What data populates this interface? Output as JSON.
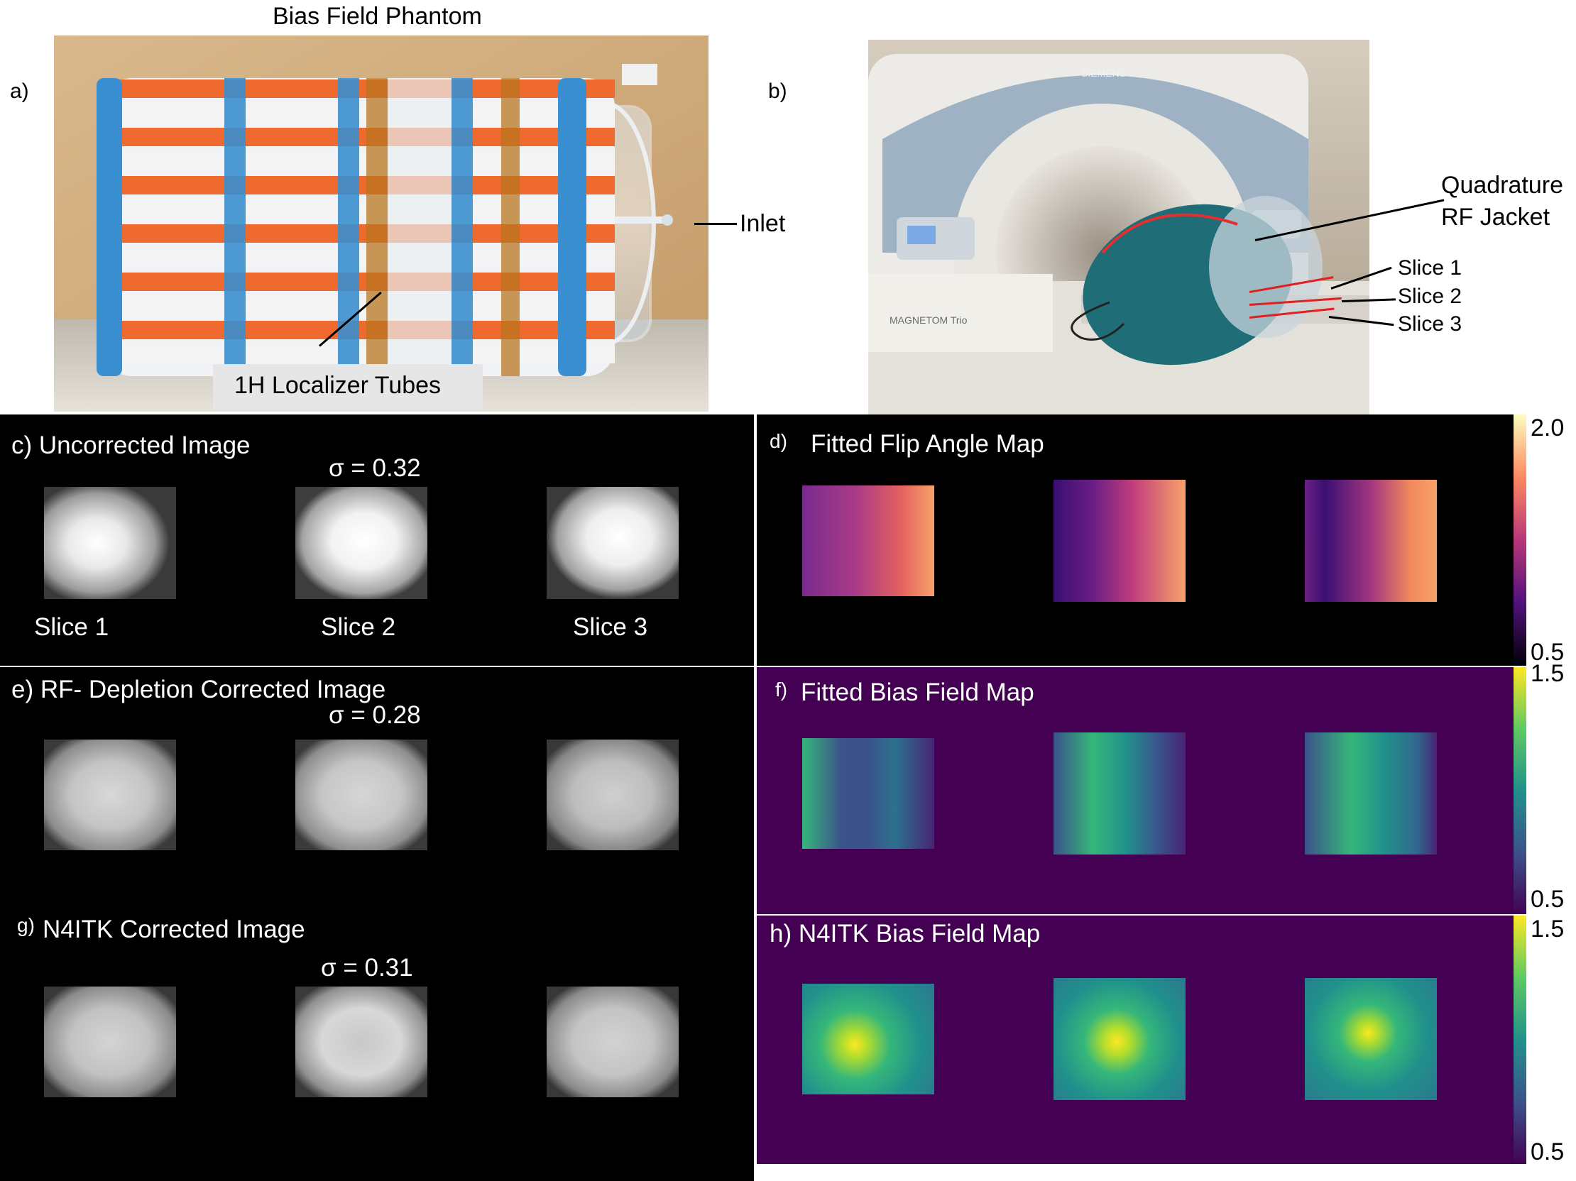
{
  "top": {
    "title": "Bias Field Phantom",
    "label_a": "a)",
    "label_b": "b)",
    "inlet": "Inlet",
    "localizer": "1H Localizer Tubes",
    "jacket_line1": "Quadrature",
    "jacket_line2": "RF Jacket",
    "slice1": "Slice 1",
    "slice2": "Slice 2",
    "slice3": "Slice 3",
    "scanner_brand": "SIEMENS",
    "scanner_model": "MAGNETOM Trio"
  },
  "panels": {
    "c": {
      "title": "c) Uncorrected Image",
      "sigma": "σ = 0.32",
      "slices": [
        "Slice 1",
        "Slice 2",
        "Slice 3"
      ]
    },
    "d": {
      "letter": "d)",
      "title": "Fitted Flip Angle Map",
      "cbar_max": "2.0",
      "cbar_min": "0.5"
    },
    "e": {
      "title": "e)  RF- Depletion Corrected Image",
      "sigma": "σ = 0.28"
    },
    "f": {
      "letter": "f)",
      "title": "Fitted Bias Field Map",
      "cbar_max": "1.5",
      "cbar_min": "0.5"
    },
    "g": {
      "letter": "g)",
      "title": "N4ITK Corrected Image",
      "sigma": "σ = 0.31"
    },
    "h": {
      "title": "h)  N4ITK Bias Field Map",
      "cbar_max": "1.5",
      "cbar_min": "0.5"
    }
  },
  "colors": {
    "viridis_bg": "#440154",
    "magma_low": "#000004",
    "magma_high": "#fcfdbf"
  }
}
